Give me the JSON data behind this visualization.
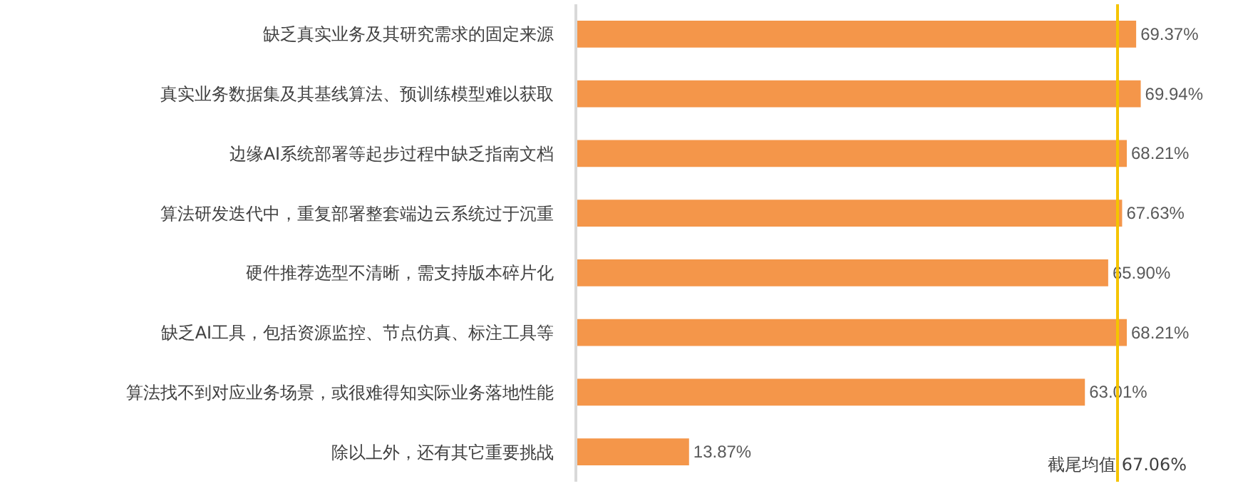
{
  "chart_data": {
    "type": "bar",
    "orientation": "horizontal",
    "categories": [
      "缺乏真实业务及其研究需求的固定来源",
      "真实业务数据集及其基线算法、预训练模型难以获取",
      "边缘AI系统部署等起步过程中缺乏指南文档",
      "算法研发迭代中，重复部署整套端边云系统过于沉重",
      "硬件推荐选型不清晰，需支持版本碎片化",
      "缺乏AI工具，包括资源监控、节点仿真、标注工具等",
      "算法找不到对应业务场景，或很难得知实际业务落地性能",
      "除以上外，还有其它重要挑战"
    ],
    "values": [
      69.37,
      69.94,
      68.21,
      67.63,
      65.9,
      68.21,
      63.01,
      13.87
    ],
    "value_labels": [
      "69.37%",
      "69.94%",
      "68.21%",
      "67.63%",
      "65.90%",
      "68.21%",
      "63.01%",
      "13.87%"
    ],
    "color": "#f4964a",
    "tick_labels": "y",
    "grid": false,
    "ref_lines": [
      {
        "axis": "x",
        "value": 67.06,
        "label": "截尾均值 67.06%",
        "color": "#f5c400"
      }
    ]
  }
}
